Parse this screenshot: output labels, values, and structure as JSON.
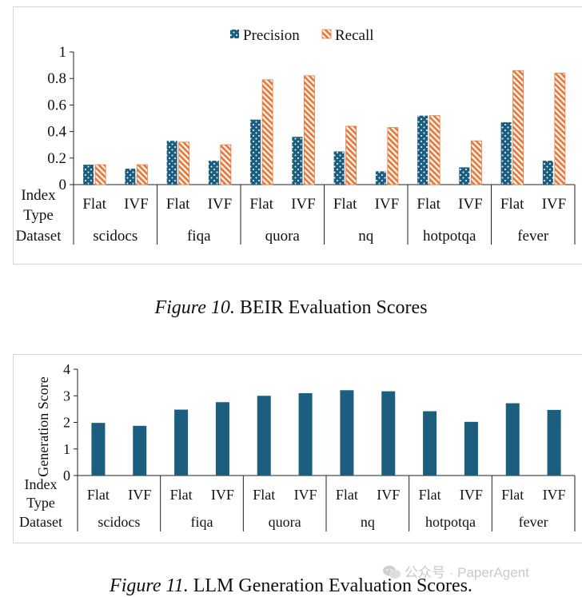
{
  "chart_data": [
    {
      "type": "bar",
      "title": "",
      "xlabel": "",
      "ylabel": "",
      "ylim": [
        0,
        1
      ],
      "yticks": [
        "1",
        "0.8",
        "0.6",
        "0.4",
        "0.2",
        "0"
      ],
      "ytick_values": [
        1,
        0.8,
        0.6,
        0.4,
        0.2,
        0
      ],
      "row_labels": {
        "index": "Index",
        "type": "Type",
        "dataset": "Dataset"
      },
      "datasets": [
        "scidocs",
        "fiqa",
        "quora",
        "nq",
        "hotpotqa",
        "fever"
      ],
      "index_types": [
        "Flat",
        "IVF"
      ],
      "categories": [
        "scidocs-Flat",
        "scidocs-IVF",
        "fiqa-Flat",
        "fiqa-IVF",
        "quora-Flat",
        "quora-IVF",
        "nq-Flat",
        "nq-IVF",
        "hotpotqa-Flat",
        "hotpotqa-IVF",
        "fever-Flat",
        "fever-IVF"
      ],
      "series": [
        {
          "name": "Precision",
          "color": "#1b5e80",
          "pattern": "dots",
          "values": [
            0.15,
            0.12,
            0.33,
            0.18,
            0.49,
            0.36,
            0.25,
            0.1,
            0.52,
            0.13,
            0.47,
            0.18
          ]
        },
        {
          "name": "Recall",
          "color": "#e8793a",
          "pattern": "hatch",
          "values": [
            0.15,
            0.15,
            0.32,
            0.3,
            0.79,
            0.82,
            0.44,
            0.43,
            0.52,
            0.33,
            0.86,
            0.84
          ]
        }
      ],
      "legend": "top-center",
      "grid": false
    },
    {
      "type": "bar",
      "title": "",
      "xlabel": "",
      "ylabel": "Generation Score",
      "ylim": [
        0,
        4
      ],
      "yticks": [
        "4",
        "3",
        "2",
        "1",
        "0"
      ],
      "ytick_values": [
        4,
        3,
        2,
        1,
        0
      ],
      "row_labels": {
        "index": "Index",
        "type": "Type",
        "dataset": "Dataset"
      },
      "datasets": [
        "scidocs",
        "fiqa",
        "quora",
        "nq",
        "hotpotqa",
        "fever"
      ],
      "index_types": [
        "Flat",
        "IVF"
      ],
      "categories": [
        "scidocs-Flat",
        "scidocs-IVF",
        "fiqa-Flat",
        "fiqa-IVF",
        "quora-Flat",
        "quora-IVF",
        "nq-Flat",
        "nq-IVF",
        "hotpotqa-Flat",
        "hotpotqa-IVF",
        "fever-Flat",
        "fever-IVF"
      ],
      "series": [
        {
          "name": "Generation Score",
          "color": "#1b5e80",
          "values": [
            1.98,
            1.87,
            2.48,
            2.76,
            3.0,
            3.1,
            3.21,
            3.17,
            2.42,
            2.02,
            2.72,
            2.47
          ]
        }
      ],
      "grid": false
    }
  ],
  "captions": {
    "fig10_label": "Figure 10.",
    "fig10_text": "BEIR Evaluation Scores",
    "fig11_label": "Figure 11.",
    "fig11_text": "LLM Generation Evaluation Scores."
  },
  "watermark": {
    "text": "公众号 · PaperAgent",
    "icon": "wechat-icon"
  }
}
